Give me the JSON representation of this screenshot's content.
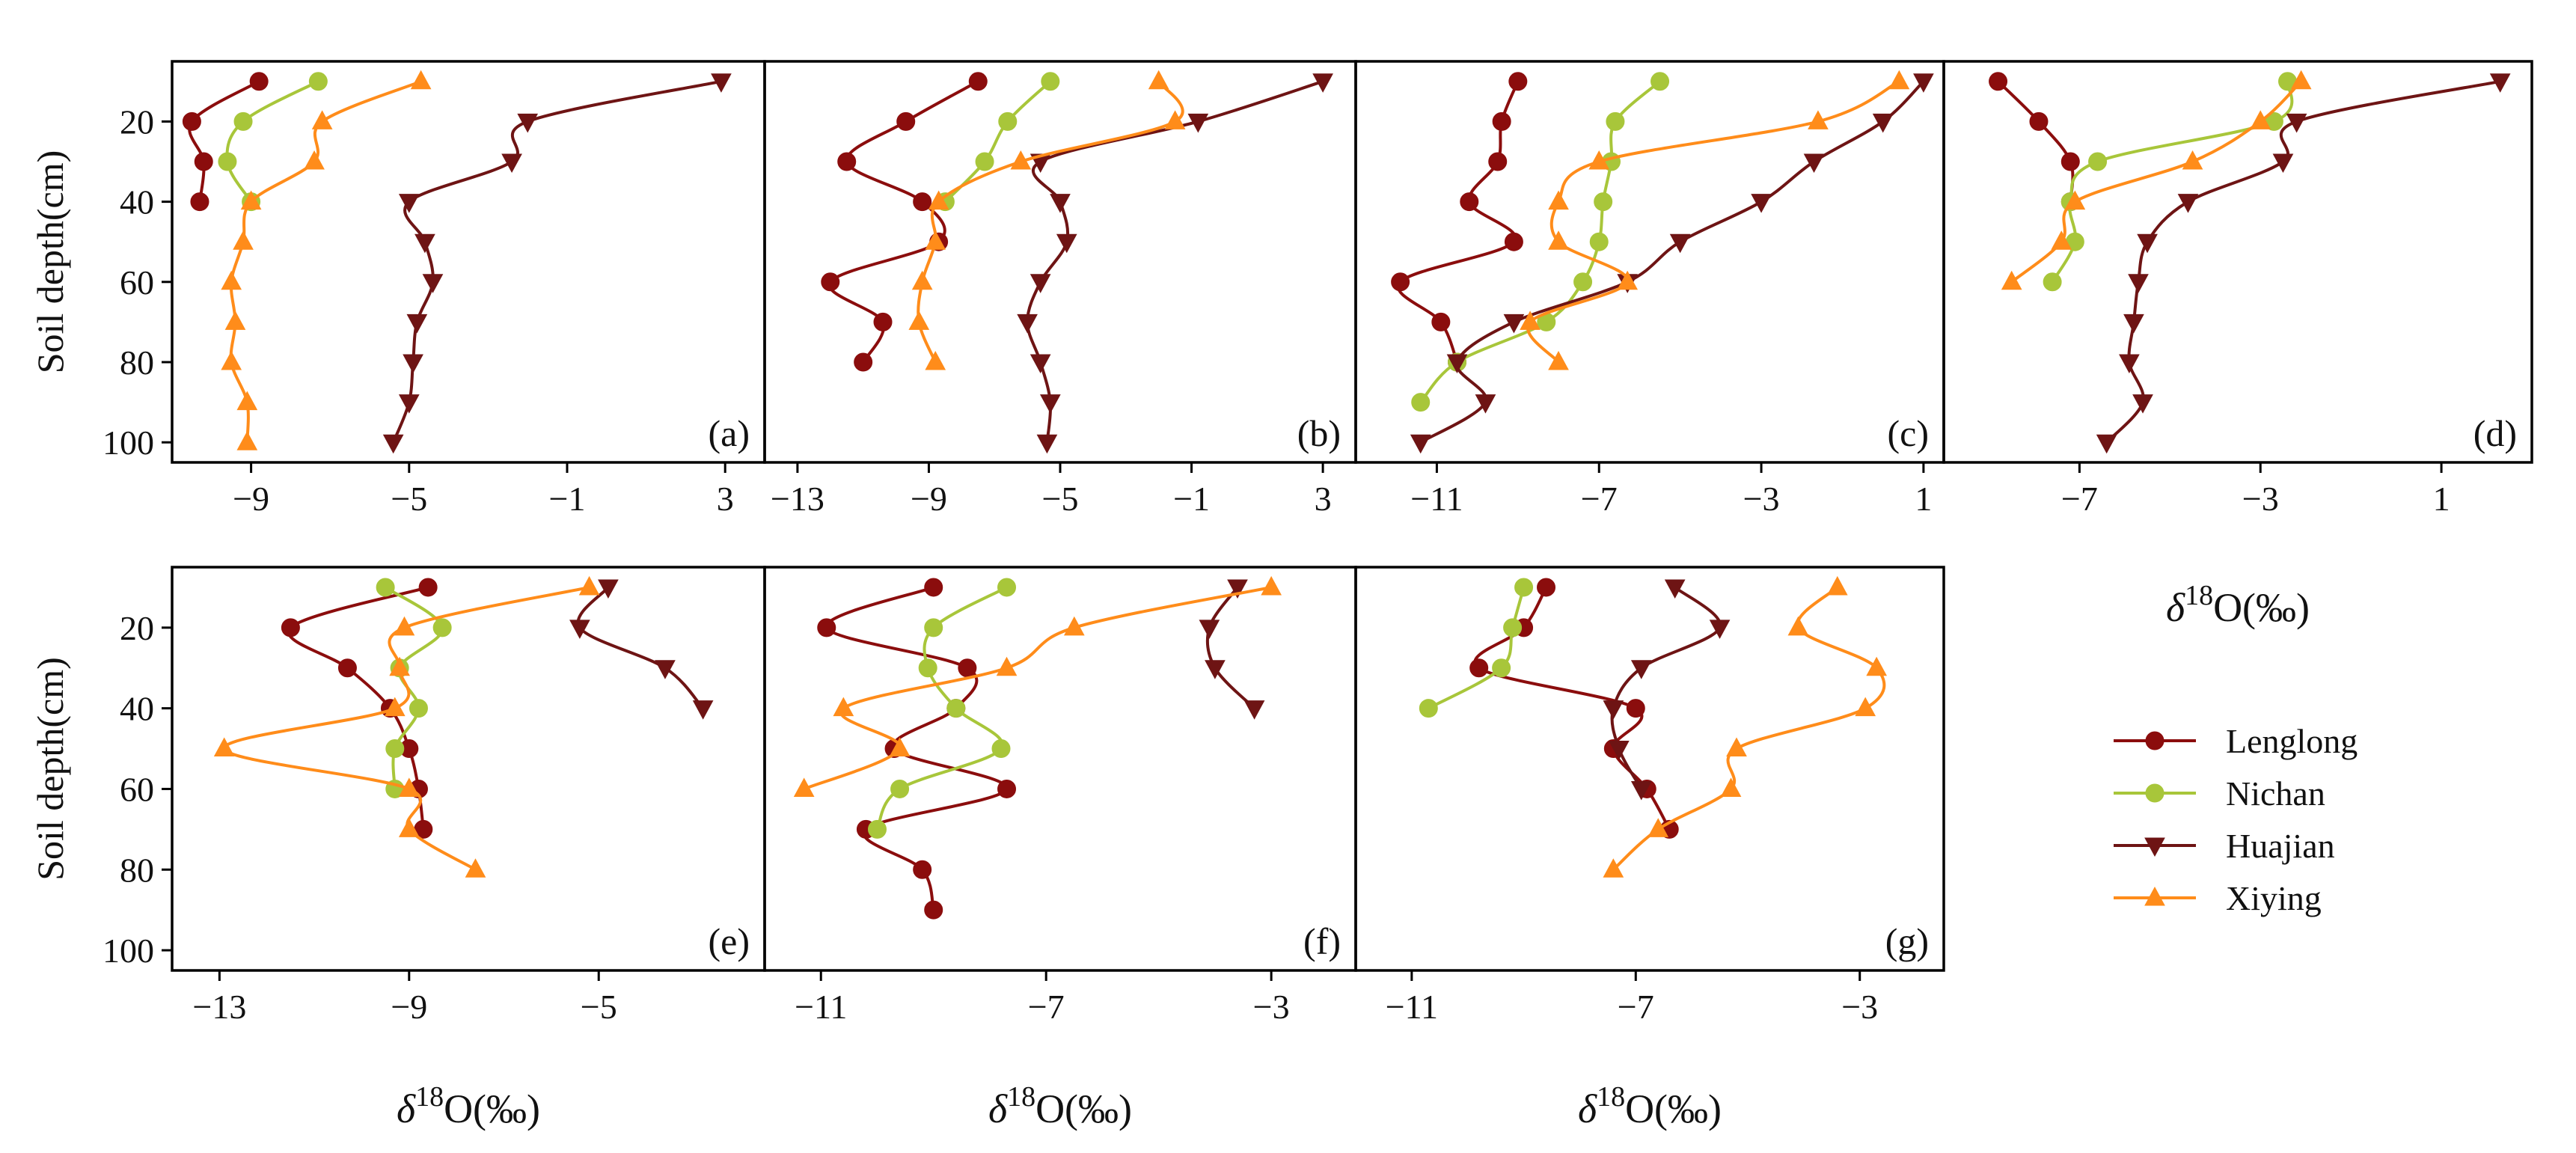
{
  "colors": {
    "Lenglong": "#8b0d0d",
    "Nichan": "#a8c63a",
    "Huajian": "#6e1414",
    "Xiying": "#ff8c1a"
  },
  "markers": {
    "Lenglong": "circle",
    "Nichan": "circle",
    "Huajian": "triangle-down",
    "Xiying": "triangle-up"
  },
  "legend": {
    "entries": [
      "Lenglong",
      "Nichan",
      "Huajian",
      "Xiying"
    ]
  },
  "labels": {
    "ylabel": "Soil depth(cm)",
    "xlabel_delta": "δ",
    "xlabel_sup": "18",
    "xlabel_rest": "O(‰)"
  },
  "chart_data": [
    {
      "type": "line",
      "panel": "(a)",
      "xlim": [
        -11,
        4
      ],
      "ylim": [
        105,
        5
      ],
      "xticks": [
        "-9",
        "-5",
        "-1",
        "3"
      ],
      "yticks": [
        "20",
        "40",
        "60",
        "80",
        "100"
      ],
      "series": [
        {
          "name": "Lenglong",
          "points": [
            [
              -8.8,
              10
            ],
            [
              -10.5,
              20
            ],
            [
              -10.2,
              30
            ],
            [
              -10.3,
              40
            ]
          ]
        },
        {
          "name": "Nichan",
          "points": [
            [
              -7.3,
              10
            ],
            [
              -9.2,
              20
            ],
            [
              -9.6,
              30
            ],
            [
              -9.0,
              40
            ]
          ]
        },
        {
          "name": "Huajian",
          "points": [
            [
              2.9,
              10
            ],
            [
              -2.0,
              20
            ],
            [
              -2.4,
              30
            ],
            [
              -5.0,
              40
            ],
            [
              -4.6,
              50
            ],
            [
              -4.4,
              60
            ],
            [
              -4.8,
              70
            ],
            [
              -4.9,
              80
            ],
            [
              -5.0,
              90
            ],
            [
              -5.4,
              100
            ]
          ]
        },
        {
          "name": "Xiying",
          "points": [
            [
              -4.7,
              10
            ],
            [
              -7.2,
              20
            ],
            [
              -7.4,
              30
            ],
            [
              -9.0,
              40
            ],
            [
              -9.2,
              50
            ],
            [
              -9.5,
              60
            ],
            [
              -9.4,
              70
            ],
            [
              -9.5,
              80
            ],
            [
              -9.1,
              90
            ],
            [
              -9.1,
              100
            ]
          ]
        }
      ]
    },
    {
      "type": "line",
      "panel": "(b)",
      "xlim": [
        -14,
        4
      ],
      "ylim": [
        105,
        5
      ],
      "xticks": [
        "-13",
        "-9",
        "-5",
        "-1",
        "3"
      ],
      "yticks": [],
      "series": [
        {
          "name": "Lenglong",
          "points": [
            [
              -7.5,
              10
            ],
            [
              -9.7,
              20
            ],
            [
              -11.5,
              30
            ],
            [
              -9.2,
              40
            ],
            [
              -8.7,
              50
            ],
            [
              -12.0,
              60
            ],
            [
              -10.4,
              70
            ],
            [
              -11.0,
              80
            ]
          ]
        },
        {
          "name": "Nichan",
          "points": [
            [
              -5.3,
              10
            ],
            [
              -6.6,
              20
            ],
            [
              -7.3,
              30
            ],
            [
              -8.5,
              40
            ]
          ]
        },
        {
          "name": "Huajian",
          "points": [
            [
              3.0,
              10
            ],
            [
              -0.8,
              20
            ],
            [
              -5.6,
              30
            ],
            [
              -5.0,
              40
            ],
            [
              -4.8,
              50
            ],
            [
              -5.6,
              60
            ],
            [
              -6.0,
              70
            ],
            [
              -5.6,
              80
            ],
            [
              -5.3,
              90
            ],
            [
              -5.4,
              100
            ]
          ]
        },
        {
          "name": "Xiying",
          "points": [
            [
              -2.0,
              10
            ],
            [
              -1.5,
              20
            ],
            [
              -6.2,
              30
            ],
            [
              -8.7,
              40
            ],
            [
              -8.8,
              50
            ],
            [
              -9.2,
              60
            ],
            [
              -9.3,
              70
            ],
            [
              -8.8,
              80
            ]
          ]
        }
      ]
    },
    {
      "type": "line",
      "panel": "(c)",
      "xlim": [
        -13,
        1.5
      ],
      "ylim": [
        105,
        5
      ],
      "xticks": [
        "-11",
        "-7",
        "-3",
        "1"
      ],
      "yticks": [],
      "series": [
        {
          "name": "Lenglong",
          "points": [
            [
              -9.0,
              10
            ],
            [
              -9.4,
              20
            ],
            [
              -9.5,
              30
            ],
            [
              -10.2,
              40
            ],
            [
              -9.1,
              50
            ],
            [
              -11.9,
              60
            ],
            [
              -10.9,
              70
            ],
            [
              -10.5,
              80
            ]
          ]
        },
        {
          "name": "Nichan",
          "points": [
            [
              -5.5,
              10
            ],
            [
              -6.6,
              20
            ],
            [
              -6.7,
              30
            ],
            [
              -6.9,
              40
            ],
            [
              -7.0,
              50
            ],
            [
              -7.4,
              60
            ],
            [
              -8.3,
              70
            ],
            [
              -10.5,
              80
            ],
            [
              -11.4,
              90
            ]
          ]
        },
        {
          "name": "Huajian",
          "points": [
            [
              1.0,
              10
            ],
            [
              0.0,
              20
            ],
            [
              -1.7,
              30
            ],
            [
              -3.0,
              40
            ],
            [
              -5.0,
              50
            ],
            [
              -6.3,
              60
            ],
            [
              -9.1,
              70
            ],
            [
              -10.5,
              80
            ],
            [
              -9.8,
              90
            ],
            [
              -11.4,
              100
            ]
          ]
        },
        {
          "name": "Xiying",
          "points": [
            [
              0.4,
              10
            ],
            [
              -1.6,
              20
            ],
            [
              -7.0,
              30
            ],
            [
              -8.0,
              40
            ],
            [
              -8.0,
              50
            ],
            [
              -6.3,
              60
            ],
            [
              -8.7,
              70
            ],
            [
              -8.0,
              80
            ]
          ]
        }
      ]
    },
    {
      "type": "line",
      "panel": "(d)",
      "xlim": [
        -10,
        3
      ],
      "ylim": [
        105,
        5
      ],
      "xticks": [
        "-7",
        "-3",
        "1"
      ],
      "yticks": [],
      "series": [
        {
          "name": "Lenglong",
          "points": [
            [
              -8.8,
              10
            ],
            [
              -7.9,
              20
            ],
            [
              -7.2,
              30
            ],
            [
              -7.2,
              40
            ]
          ]
        },
        {
          "name": "Nichan",
          "points": [
            [
              -2.4,
              10
            ],
            [
              -2.7,
              20
            ],
            [
              -6.6,
              30
            ],
            [
              -7.2,
              40
            ],
            [
              -7.1,
              50
            ],
            [
              -7.6,
              60
            ]
          ]
        },
        {
          "name": "Huajian",
          "points": [
            [
              2.3,
              10
            ],
            [
              -2.2,
              20
            ],
            [
              -2.5,
              30
            ],
            [
              -4.6,
              40
            ],
            [
              -5.5,
              50
            ],
            [
              -5.7,
              60
            ],
            [
              -5.8,
              70
            ],
            [
              -5.9,
              80
            ],
            [
              -5.6,
              90
            ],
            [
              -6.4,
              100
            ]
          ]
        },
        {
          "name": "Xiying",
          "points": [
            [
              -2.1,
              10
            ],
            [
              -3.0,
              20
            ],
            [
              -4.5,
              30
            ],
            [
              -7.1,
              40
            ],
            [
              -7.4,
              50
            ],
            [
              -8.5,
              60
            ]
          ]
        }
      ]
    },
    {
      "type": "line",
      "panel": "(e)",
      "xlim": [
        -14,
        -1.5
      ],
      "ylim": [
        105,
        5
      ],
      "xticks": [
        "-13",
        "-9",
        "-5"
      ],
      "yticks": [
        "20",
        "40",
        "60",
        "80",
        "100"
      ],
      "series": [
        {
          "name": "Lenglong",
          "points": [
            [
              -8.6,
              10
            ],
            [
              -11.5,
              20
            ],
            [
              -10.3,
              30
            ],
            [
              -9.4,
              40
            ],
            [
              -9.0,
              50
            ],
            [
              -8.8,
              60
            ],
            [
              -8.7,
              70
            ]
          ]
        },
        {
          "name": "Nichan",
          "points": [
            [
              -9.5,
              10
            ],
            [
              -8.3,
              20
            ],
            [
              -9.2,
              30
            ],
            [
              -8.8,
              40
            ],
            [
              -9.3,
              50
            ],
            [
              -9.3,
              60
            ]
          ]
        },
        {
          "name": "Huajian",
          "points": [
            [
              -4.8,
              10
            ],
            [
              -5.4,
              20
            ],
            [
              -3.6,
              30
            ],
            [
              -2.8,
              40
            ]
          ]
        },
        {
          "name": "Xiying",
          "points": [
            [
              -5.2,
              10
            ],
            [
              -9.1,
              20
            ],
            [
              -9.2,
              30
            ],
            [
              -9.3,
              40
            ],
            [
              -12.9,
              50
            ],
            [
              -9.0,
              60
            ],
            [
              -9.0,
              70
            ],
            [
              -7.6,
              80
            ]
          ]
        }
      ]
    },
    {
      "type": "line",
      "panel": "(f)",
      "xlim": [
        -12,
        -1.5
      ],
      "ylim": [
        105,
        5
      ],
      "xticks": [
        "-11",
        "-7",
        "-3"
      ],
      "yticks": [],
      "series": [
        {
          "name": "Lenglong",
          "points": [
            [
              -9.0,
              10
            ],
            [
              -10.9,
              20
            ],
            [
              -8.4,
              30
            ],
            [
              -8.6,
              40
            ],
            [
              -9.7,
              50
            ],
            [
              -7.7,
              60
            ],
            [
              -10.2,
              70
            ],
            [
              -9.2,
              80
            ],
            [
              -9.0,
              90
            ]
          ]
        },
        {
          "name": "Nichan",
          "points": [
            [
              -7.7,
              10
            ],
            [
              -9.0,
              20
            ],
            [
              -9.1,
              30
            ],
            [
              -8.6,
              40
            ],
            [
              -7.8,
              50
            ],
            [
              -9.6,
              60
            ],
            [
              -10.0,
              70
            ]
          ]
        },
        {
          "name": "Huajian",
          "points": [
            [
              -3.6,
              10
            ],
            [
              -4.1,
              20
            ],
            [
              -4.0,
              30
            ],
            [
              -3.3,
              40
            ]
          ]
        },
        {
          "name": "Xiying",
          "points": [
            [
              -3.0,
              10
            ],
            [
              -6.5,
              20
            ],
            [
              -7.7,
              30
            ],
            [
              -10.6,
              40
            ],
            [
              -9.6,
              50
            ],
            [
              -11.3,
              60
            ]
          ]
        }
      ]
    },
    {
      "type": "line",
      "panel": "(g)",
      "xlim": [
        -12,
        -1.5
      ],
      "ylim": [
        105,
        5
      ],
      "xticks": [
        "-11",
        "-7",
        "-3"
      ],
      "yticks": [],
      "series": [
        {
          "name": "Lenglong",
          "points": [
            [
              -8.6,
              10
            ],
            [
              -9.0,
              20
            ],
            [
              -9.8,
              30
            ],
            [
              -7.0,
              40
            ],
            [
              -7.4,
              50
            ],
            [
              -6.8,
              60
            ],
            [
              -6.4,
              70
            ]
          ]
        },
        {
          "name": "Nichan",
          "points": [
            [
              -9.0,
              10
            ],
            [
              -9.2,
              20
            ],
            [
              -9.4,
              30
            ],
            [
              -10.7,
              40
            ]
          ]
        },
        {
          "name": "Huajian",
          "points": [
            [
              -6.3,
              10
            ],
            [
              -5.5,
              20
            ],
            [
              -6.9,
              30
            ],
            [
              -7.4,
              40
            ],
            [
              -7.3,
              50
            ],
            [
              -6.9,
              60
            ]
          ]
        },
        {
          "name": "Xiying",
          "points": [
            [
              -3.4,
              10
            ],
            [
              -4.1,
              20
            ],
            [
              -2.7,
              30
            ],
            [
              -2.9,
              40
            ],
            [
              -5.2,
              50
            ],
            [
              -5.3,
              60
            ],
            [
              -6.6,
              70
            ],
            [
              -7.4,
              80
            ]
          ]
        }
      ]
    }
  ]
}
